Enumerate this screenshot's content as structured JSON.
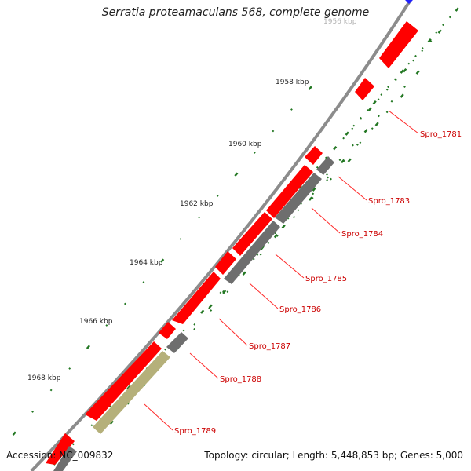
{
  "title": "Serratia proteamaculans 568, complete genome",
  "accession": "Accession: NC_009832",
  "summary": "Topology: circular; Length: 5,448,853 bp; Genes: 5,000",
  "ticks": [
    "1956 kbp",
    "1958 kbp",
    "1960 kbp",
    "1962 kbp",
    "1964 kbp",
    "1966 kbp",
    "1968 kbp"
  ],
  "genes": [
    "Spro_1781",
    "Spro_1783",
    "Spro_1784",
    "Spro_1785",
    "Spro_1786",
    "Spro_1787",
    "Spro_1788",
    "Spro_1789"
  ],
  "colors": {
    "forward": "#ff0000",
    "reverse": "#6e6e6e",
    "highlight": "#b5b07a",
    "backbone": "#8c8c8c",
    "tick": "#227722",
    "label": "#cc0000"
  }
}
